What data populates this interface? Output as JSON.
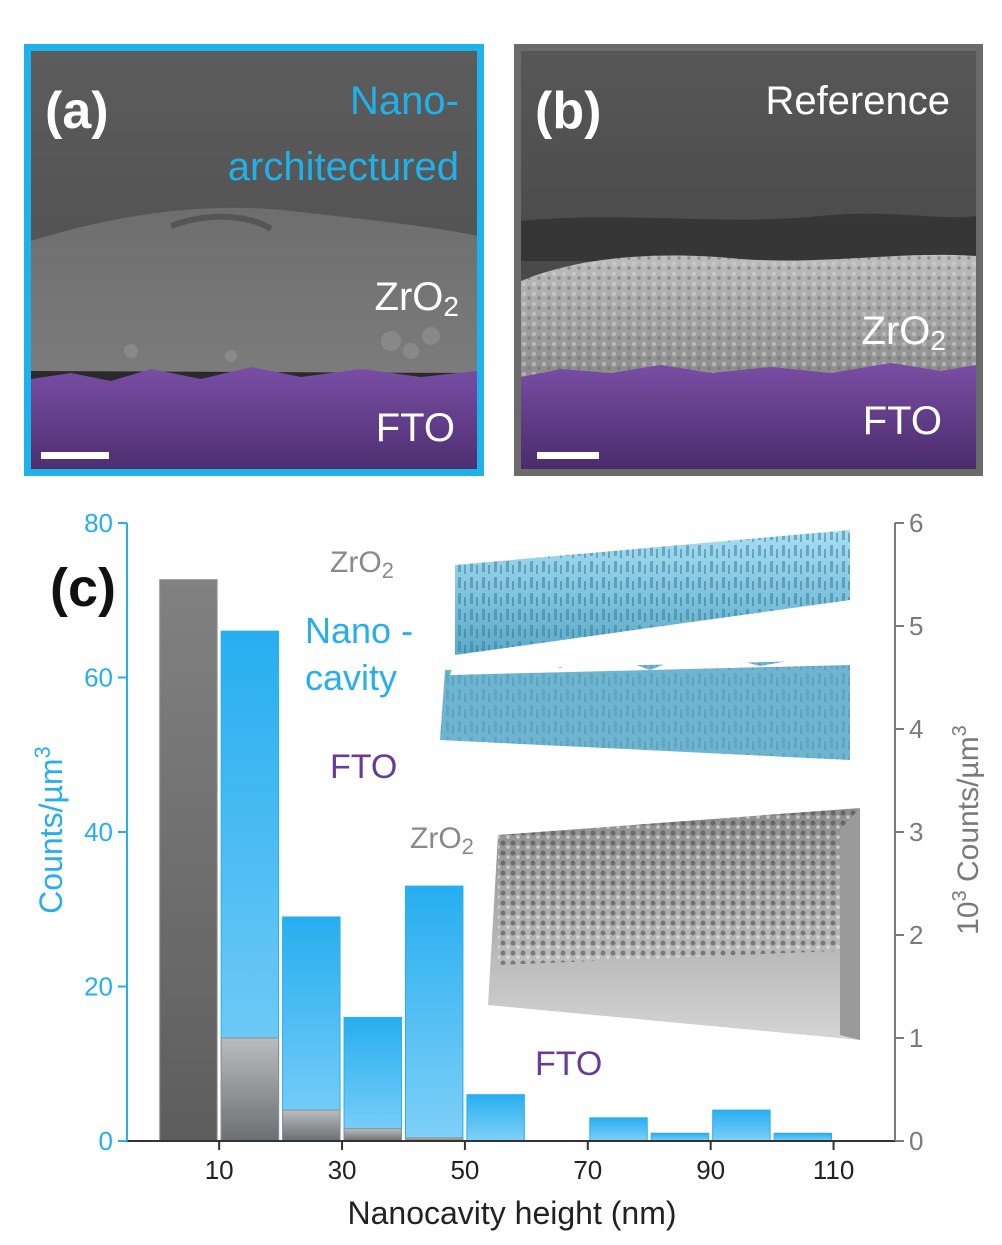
{
  "panel_a": {
    "label": "(a)",
    "title_line1": "Nano-",
    "title_line2": "architectured",
    "layer_top_main": "ZrO",
    "layer_top_sub": "2",
    "layer_bottom": "FTO",
    "border_color": "#1fb2ea"
  },
  "panel_b": {
    "label": "(b)",
    "title": "Reference",
    "layer_top_main": "ZrO",
    "layer_top_sub": "2",
    "layer_bottom": "FTO",
    "border_color": "#6b6b6b"
  },
  "panel_c": {
    "label": "(c)",
    "inset_top": {
      "zro2_main": "ZrO",
      "zro2_sub": "2",
      "nano_line1": "Nano -",
      "nano_line2": "cavity",
      "fto": "FTO"
    },
    "inset_bottom": {
      "zro2_main": "ZrO",
      "zro2_sub": "2",
      "fto": "FTO"
    }
  },
  "colors": {
    "blue": "#27aef0",
    "gray": "#7a7a7a",
    "purple": "#6a3a9a",
    "axis": "#333333"
  },
  "chart_data": {
    "type": "bar",
    "xlabel": "Nanocavity height (nm)",
    "ylabel_left": "Counts/µm",
    "ylabel_left_sup": "3",
    "ylabel_right_pre": "10",
    "ylabel_right_pre_sup": "3",
    "ylabel_right": " Counts/µm",
    "ylabel_right_sup": "3",
    "x_ticks": [
      "10",
      "30",
      "50",
      "70",
      "90",
      "110"
    ],
    "x_tick_values": [
      10,
      30,
      50,
      70,
      90,
      110
    ],
    "xlim": [
      -5,
      120
    ],
    "y_left_lim": [
      0,
      80
    ],
    "y_left_ticks": [
      "0",
      "20",
      "40",
      "60",
      "80"
    ],
    "y_left_tick_values": [
      0,
      20,
      40,
      60,
      80
    ],
    "y_right_lim": [
      0,
      6
    ],
    "y_right_ticks": [
      "0",
      "1",
      "2",
      "3",
      "4",
      "5",
      "6"
    ],
    "y_right_tick_values": [
      0,
      1,
      2,
      3,
      4,
      5,
      6
    ],
    "bin_width": 10,
    "series": [
      {
        "axis": "left",
        "bin_starts": [
          10,
          20,
          30,
          40,
          50,
          70,
          80,
          90,
          100
        ],
        "values": [
          66,
          29,
          16,
          33,
          6,
          3,
          1,
          4,
          1
        ]
      },
      {
        "axis": "right",
        "bin_starts": [
          0,
          10,
          20,
          30,
          40
        ],
        "values": [
          5.45,
          1.0,
          0.3,
          0.12,
          0.03
        ]
      }
    ]
  }
}
